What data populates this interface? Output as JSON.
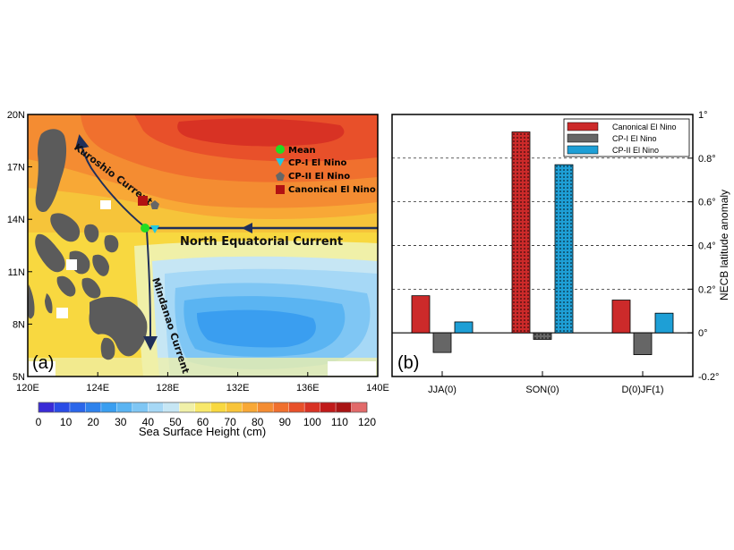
{
  "panel_a": {
    "panel_label": "(a)",
    "lat_ticks": [
      "20N",
      "17N",
      "14N",
      "11N",
      "8N",
      "5N"
    ],
    "lon_ticks": [
      "120E",
      "124E",
      "128E",
      "132E",
      "136E",
      "140E"
    ],
    "currents": {
      "kuroshio": "Kuroshio Current",
      "mindanao": "Mindanao Current",
      "necur": "North Equatorial Current"
    },
    "legend": [
      {
        "label": "Mean",
        "color": "#22dd22",
        "marker": "circle"
      },
      {
        "label": "CP-I El Nino",
        "color": "#22c8e0",
        "marker": "triangle-down"
      },
      {
        "label": "CP-II El Nino",
        "color": "#666666",
        "marker": "pentagon"
      },
      {
        "label": "Canonical El Nino",
        "color": "#b21212",
        "marker": "square"
      }
    ],
    "colorbar": {
      "title": "Sea Surface Height (cm)",
      "tick_labels": [
        "0",
        "10",
        "20",
        "30",
        "40",
        "50",
        "60",
        "70",
        "80",
        "90",
        "100",
        "110",
        "120"
      ],
      "colors": [
        "#3a2bd6",
        "#2a4ce6",
        "#2a66ea",
        "#2e82ec",
        "#3a9ef0",
        "#5ab4f2",
        "#7fc6f4",
        "#a6d8f6",
        "#c6e6f4",
        "#f0f0a8",
        "#f8e86a",
        "#f8d840",
        "#f8c43a",
        "#f8a836",
        "#f48c32",
        "#f0702e",
        "#e8502a",
        "#d83224",
        "#c01a1a",
        "#a81414",
        "#e26a6a"
      ]
    }
  },
  "chart_data": {
    "type": "bar",
    "panel_label": "(b)",
    "categories": [
      "JJA(0)",
      "SON(0)",
      "D(0)JF(1)"
    ],
    "series": [
      {
        "name": "Canonical El Nino",
        "values": [
          0.17,
          0.92,
          0.15
        ],
        "color": "#cc2a2a"
      },
      {
        "name": "CP-I El Nino",
        "values": [
          -0.09,
          -0.03,
          -0.1
        ],
        "color": "#666666"
      },
      {
        "name": "CP-II El Nino",
        "values": [
          0.05,
          0.77,
          0.09
        ],
        "color": "#1e9fd6"
      }
    ],
    "hatched_category": "SON(0)",
    "ylabel": "NECB latitude anomaly",
    "ylim": [
      -0.2,
      1.0
    ],
    "yticks": [
      -0.2,
      0,
      0.2,
      0.4,
      0.6,
      0.8,
      1
    ],
    "ytick_labels": [
      "-0.2°",
      "0°",
      "0.2°",
      "0.4°",
      "0.6°",
      "0.8°",
      "1°"
    ],
    "grid": "horizontal dashed at 0.2, 0.4, 0.6, 0.8",
    "legend_position": "top-right"
  }
}
